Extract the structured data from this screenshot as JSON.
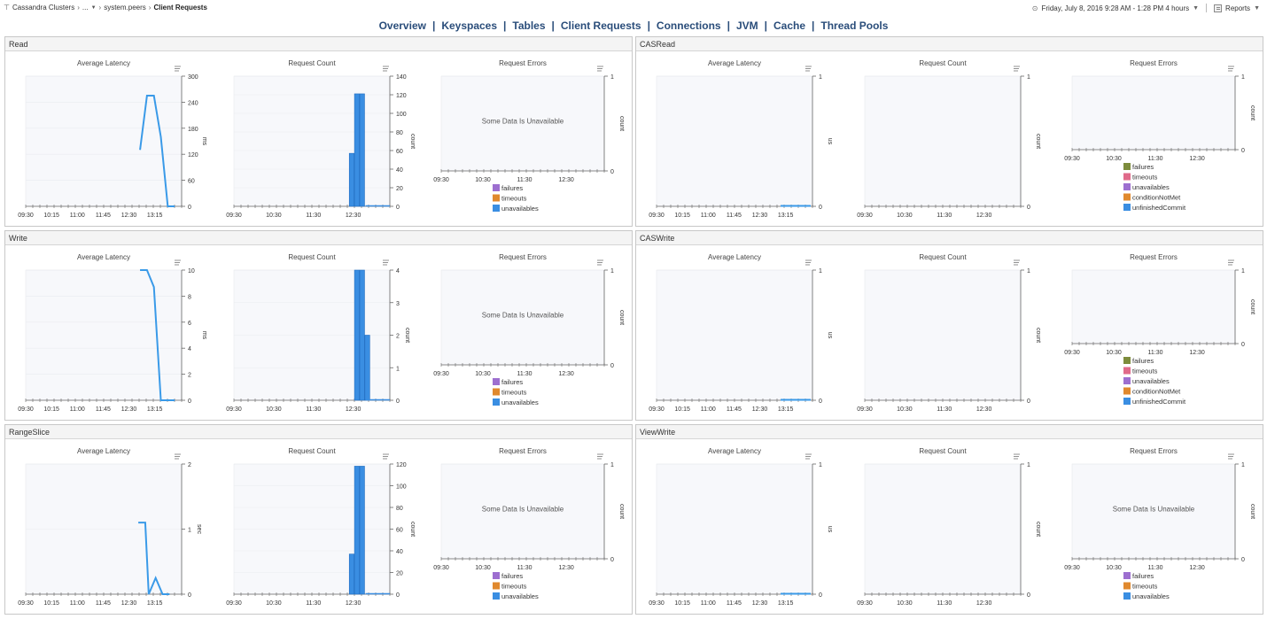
{
  "breadcrumb": {
    "root": "Cassandra Clusters",
    "ellipsis": "...",
    "table": "system.peers",
    "current": "Client Requests"
  },
  "header_right": {
    "time_range": "Friday, July 8, 2016 9:28 AM - 1:28 PM 4 hours",
    "reports": "Reports"
  },
  "nav": {
    "tabs": [
      "Overview",
      "Keyspaces",
      "Tables",
      "Client Requests",
      "Connections",
      "JVM",
      "Cache",
      "Thread Pools"
    ]
  },
  "colors": {
    "series_line": "#3a9ae8",
    "bar": "#3a8ee2",
    "failures": "#9d6fd0",
    "timeouts": "#e0892e",
    "unavailables": "#3a8ee2",
    "failures_cas": "#7d8c3c",
    "timeouts_cas": "#e06a8a",
    "unavailables_cas": "#9d6fd0",
    "conditionNotMet": "#e0892e",
    "unfinishedCommit": "#3a8ee2"
  },
  "panels": [
    {
      "title": "Read",
      "charts": [
        {
          "title": "Average Latency",
          "type": "line",
          "ylabel": "ms",
          "x_ticks": [
            "09:30",
            "10:15",
            "11:00",
            "11:45",
            "12:30",
            "13:15"
          ],
          "y_ticks": [
            "0",
            "60",
            "120",
            "180",
            "240",
            "300"
          ],
          "ylim": [
            0,
            300
          ],
          "series": [
            {
              "x": [
                12.8,
                13.0,
                13.2,
                13.4,
                13.6,
                13.8
              ],
              "y": [
                130,
                255,
                255,
                160,
                0,
                0
              ]
            }
          ]
        },
        {
          "title": "Request Count",
          "type": "bar",
          "ylabel": "count",
          "x_ticks": [
            "09:30",
            "10:30",
            "11:30",
            "12:30"
          ],
          "y_ticks": [
            "0",
            "20",
            "40",
            "60",
            "80",
            "100",
            "120",
            "140"
          ],
          "ylim": [
            0,
            140
          ],
          "bars": [
            {
              "x": 12.9,
              "value": 57
            },
            {
              "x": 13.05,
              "value": 121
            },
            {
              "x": 13.2,
              "value": 121
            }
          ]
        },
        {
          "title": "Request Errors",
          "type": "empty",
          "ylabel": "count",
          "x_ticks": [
            "09:30",
            "10:30",
            "11:30",
            "12:30"
          ],
          "y_ticks": [
            "0",
            "1"
          ],
          "message": "Some Data Is Unavailable",
          "legend": [
            {
              "label": "failures",
              "color": "#9d6fd0"
            },
            {
              "label": "timeouts",
              "color": "#e0892e"
            },
            {
              "label": "unavailables",
              "color": "#3a8ee2"
            }
          ]
        }
      ]
    },
    {
      "title": "CASRead",
      "charts": [
        {
          "title": "Average Latency",
          "type": "flat",
          "ylabel": "us",
          "x_ticks": [
            "09:30",
            "10:15",
            "11:00",
            "11:45",
            "12:30",
            "13:15"
          ],
          "y_ticks": [
            "0",
            "1"
          ]
        },
        {
          "title": "Request Count",
          "type": "empty",
          "ylabel": "count",
          "x_ticks": [
            "09:30",
            "10:30",
            "11:30",
            "12:30"
          ],
          "y_ticks": [
            "0",
            "1"
          ]
        },
        {
          "title": "Request Errors",
          "type": "empty",
          "ylabel": "count",
          "x_ticks": [
            "09:30",
            "10:30",
            "11:30",
            "12:30"
          ],
          "y_ticks": [
            "0",
            "1"
          ],
          "legend": [
            {
              "label": "failures",
              "color": "#7d8c3c"
            },
            {
              "label": "timeouts",
              "color": "#e06a8a"
            },
            {
              "label": "unavailables",
              "color": "#9d6fd0"
            },
            {
              "label": "conditionNotMet",
              "color": "#e0892e"
            },
            {
              "label": "unfinishedCommit",
              "color": "#3a8ee2"
            }
          ]
        }
      ]
    },
    {
      "title": "Write",
      "charts": [
        {
          "title": "Average Latency",
          "type": "line",
          "ylabel": "ms",
          "x_ticks": [
            "09:30",
            "10:15",
            "11:00",
            "11:45",
            "12:30",
            "13:15"
          ],
          "y_ticks": [
            "0",
            "2",
            "4",
            "6",
            "8",
            "10"
          ],
          "ylim": [
            0,
            10
          ],
          "series": [
            {
              "x": [
                12.8,
                13.0,
                13.2,
                13.4,
                13.6,
                13.8
              ],
              "y": [
                10,
                10,
                8.7,
                0,
                0,
                0
              ]
            }
          ]
        },
        {
          "title": "Request Count",
          "type": "bar",
          "ylabel": "count",
          "x_ticks": [
            "09:30",
            "10:30",
            "11:30",
            "12:30"
          ],
          "y_ticks": [
            "0",
            "1",
            "2",
            "3",
            "4"
          ],
          "ylim": [
            0,
            4
          ],
          "bars": [
            {
              "x": 13.05,
              "value": 4
            },
            {
              "x": 13.2,
              "value": 4
            },
            {
              "x": 13.35,
              "value": 2
            }
          ]
        },
        {
          "title": "Request Errors",
          "type": "empty",
          "ylabel": "count",
          "x_ticks": [
            "09:30",
            "10:30",
            "11:30",
            "12:30"
          ],
          "y_ticks": [
            "0",
            "1"
          ],
          "message": "Some Data Is Unavailable",
          "legend": [
            {
              "label": "failures",
              "color": "#9d6fd0"
            },
            {
              "label": "timeouts",
              "color": "#e0892e"
            },
            {
              "label": "unavailables",
              "color": "#3a8ee2"
            }
          ]
        }
      ]
    },
    {
      "title": "CASWrite",
      "charts": [
        {
          "title": "Average Latency",
          "type": "flat",
          "ylabel": "us",
          "x_ticks": [
            "09:30",
            "10:15",
            "11:00",
            "11:45",
            "12:30",
            "13:15"
          ],
          "y_ticks": [
            "0",
            "1"
          ]
        },
        {
          "title": "Request Count",
          "type": "empty",
          "ylabel": "count",
          "x_ticks": [
            "09:30",
            "10:30",
            "11:30",
            "12:30"
          ],
          "y_ticks": [
            "0",
            "1"
          ]
        },
        {
          "title": "Request Errors",
          "type": "empty",
          "ylabel": "count",
          "x_ticks": [
            "09:30",
            "10:30",
            "11:30",
            "12:30"
          ],
          "y_ticks": [
            "0",
            "1"
          ],
          "legend": [
            {
              "label": "failures",
              "color": "#7d8c3c"
            },
            {
              "label": "timeouts",
              "color": "#e06a8a"
            },
            {
              "label": "unavailables",
              "color": "#9d6fd0"
            },
            {
              "label": "conditionNotMet",
              "color": "#e0892e"
            },
            {
              "label": "unfinishedCommit",
              "color": "#3a8ee2"
            }
          ]
        }
      ]
    },
    {
      "title": "RangeSlice",
      "charts": [
        {
          "title": "Average Latency",
          "type": "line",
          "ylabel": "sec",
          "x_ticks": [
            "09:30",
            "10:15",
            "11:00",
            "11:45",
            "12:30",
            "13:15"
          ],
          "y_ticks": [
            "0",
            "1",
            "2"
          ],
          "ylim": [
            0,
            2
          ],
          "series": [
            {
              "x": [
                12.75,
                12.95,
                13.05,
                13.25,
                13.45,
                13.65
              ],
              "y": [
                1.1,
                1.1,
                0,
                0.25,
                0,
                0
              ]
            }
          ]
        },
        {
          "title": "Request Count",
          "type": "bar",
          "ylabel": "count",
          "x_ticks": [
            "09:30",
            "10:30",
            "11:30",
            "12:30"
          ],
          "y_ticks": [
            "0",
            "20",
            "40",
            "60",
            "80",
            "100",
            "120"
          ],
          "ylim": [
            0,
            120
          ],
          "bars": [
            {
              "x": 12.9,
              "value": 37
            },
            {
              "x": 13.05,
              "value": 118
            },
            {
              "x": 13.2,
              "value": 118
            }
          ]
        },
        {
          "title": "Request Errors",
          "type": "empty",
          "ylabel": "count",
          "x_ticks": [
            "09:30",
            "10:30",
            "11:30",
            "12:30"
          ],
          "y_ticks": [
            "0",
            "1"
          ],
          "message": "Some Data Is Unavailable",
          "legend": [
            {
              "label": "failures",
              "color": "#9d6fd0"
            },
            {
              "label": "timeouts",
              "color": "#e0892e"
            },
            {
              "label": "unavailables",
              "color": "#3a8ee2"
            }
          ]
        }
      ]
    },
    {
      "title": "ViewWrite",
      "charts": [
        {
          "title": "Average Latency",
          "type": "flat",
          "ylabel": "us",
          "x_ticks": [
            "09:30",
            "10:15",
            "11:00",
            "11:45",
            "12:30",
            "13:15"
          ],
          "y_ticks": [
            "0",
            "1"
          ]
        },
        {
          "title": "Request Count",
          "type": "empty",
          "ylabel": "count",
          "x_ticks": [
            "09:30",
            "10:30",
            "11:30",
            "12:30"
          ],
          "y_ticks": [
            "0",
            "1"
          ]
        },
        {
          "title": "Request Errors",
          "type": "empty",
          "ylabel": "count",
          "x_ticks": [
            "09:30",
            "10:30",
            "11:30",
            "12:30"
          ],
          "y_ticks": [
            "0",
            "1"
          ],
          "message": "Some Data Is Unavailable",
          "legend": [
            {
              "label": "failures",
              "color": "#9d6fd0"
            },
            {
              "label": "timeouts",
              "color": "#e0892e"
            },
            {
              "label": "unavailables",
              "color": "#3a8ee2"
            }
          ]
        }
      ]
    }
  ]
}
